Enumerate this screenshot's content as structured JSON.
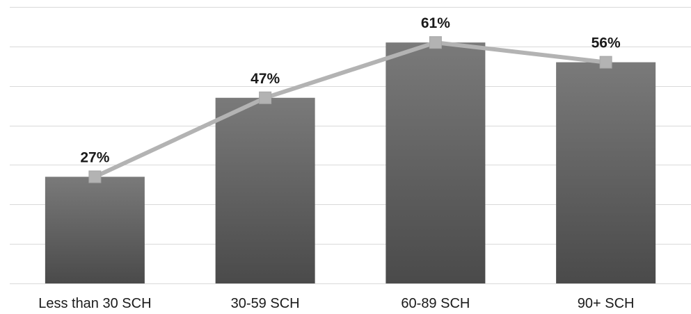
{
  "chart_data": {
    "type": "bar",
    "categories": [
      "Less than 30 SCH",
      "30-59 SCH",
      "60-89 SCH",
      "90+ SCH"
    ],
    "series": [
      {
        "type": "bar",
        "values": [
          27,
          47,
          61,
          56
        ]
      },
      {
        "type": "line",
        "values": [
          27,
          47,
          61,
          56
        ]
      }
    ],
    "data_labels": [
      "27%",
      "47%",
      "61%",
      "56%"
    ],
    "ylim": [
      0,
      70
    ],
    "grid": true,
    "legend": "none",
    "colors": {
      "bar_top": "#7a7a7a",
      "bar_bottom": "#4a4a4a",
      "line": "#b3b3b3",
      "marker": "#b3b3b3",
      "marker_stroke": "#a6a6a6"
    }
  }
}
